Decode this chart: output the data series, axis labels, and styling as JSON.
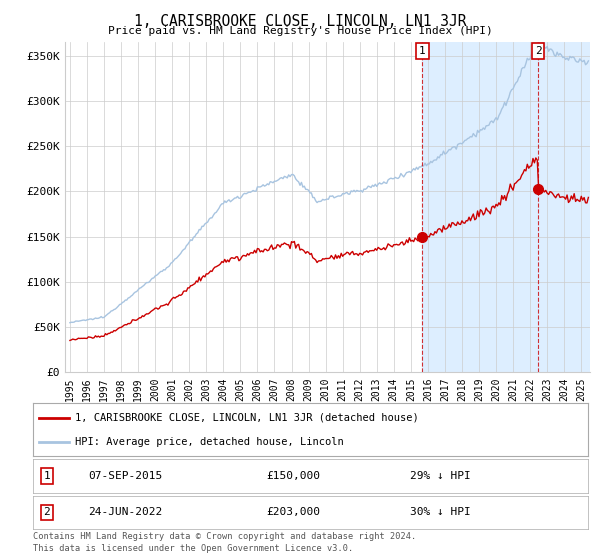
{
  "title": "1, CARISBROOKE CLOSE, LINCOLN, LN1 3JR",
  "subtitle": "Price paid vs. HM Land Registry's House Price Index (HPI)",
  "ylabel_ticks": [
    "£0",
    "£50K",
    "£100K",
    "£150K",
    "£200K",
    "£250K",
    "£300K",
    "£350K"
  ],
  "ytick_values": [
    0,
    50000,
    100000,
    150000,
    200000,
    250000,
    300000,
    350000
  ],
  "ylim": [
    0,
    365000
  ],
  "xlim_start": 1994.7,
  "xlim_end": 2025.5,
  "hpi_color": "#a8c4e0",
  "hpi_fill_color": "#ddeeff",
  "price_color": "#cc0000",
  "sale1_date": "07-SEP-2015",
  "sale1_price": 150000,
  "sale1_label": "29% ↓ HPI",
  "sale1_x": 2015.68,
  "sale2_date": "24-JUN-2022",
  "sale2_price": 203000,
  "sale2_label": "30% ↓ HPI",
  "sale2_x": 2022.48,
  "legend_line1": "1, CARISBROOKE CLOSE, LINCOLN, LN1 3JR (detached house)",
  "legend_line2": "HPI: Average price, detached house, Lincoln",
  "footer1": "Contains HM Land Registry data © Crown copyright and database right 2024.",
  "footer2": "This data is licensed under the Open Government Licence v3.0.",
  "background_color": "#ffffff",
  "grid_color": "#cccccc",
  "shade_color": "#ddeeff"
}
